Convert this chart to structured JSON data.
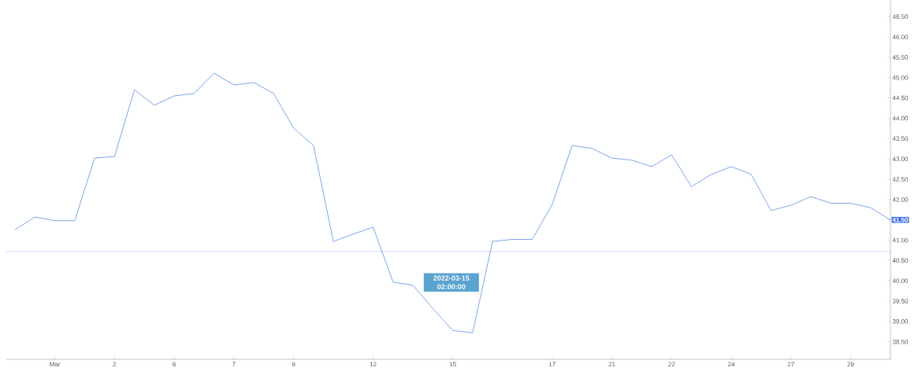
{
  "chart_data": {
    "type": "line",
    "categories": [
      null,
      null,
      "Mar",
      null,
      null,
      "2",
      null,
      null,
      "6",
      null,
      null,
      "7",
      null,
      null,
      "9",
      null,
      null,
      null,
      "12",
      null,
      null,
      null,
      "15",
      null,
      null,
      null,
      null,
      "17",
      null,
      null,
      "21",
      null,
      null,
      "22",
      null,
      null,
      "24",
      null,
      null,
      "27",
      null,
      null,
      "29",
      null,
      null
    ],
    "series": [
      {
        "color": "#5b8fe3",
        "values": [
          41.26,
          41.57,
          41.48,
          41.48,
          43.02,
          43.06,
          44.7,
          44.32,
          44.55,
          44.61,
          45.11,
          44.82,
          44.88,
          44.61,
          43.76,
          43.33,
          40.97,
          41.15,
          41.32,
          39.97,
          39.89,
          39.32,
          38.78,
          38.72,
          40.97,
          41.02,
          41.02,
          41.88,
          43.33,
          43.26,
          43.02,
          42.97,
          42.81,
          43.1,
          42.32,
          42.62,
          42.81,
          42.62,
          41.73,
          41.86,
          42.07,
          41.91,
          41.91,
          41.8,
          41.5
        ]
      }
    ],
    "ylim": [
      38.07,
      46.91
    ],
    "yticks": [
      {
        "value": 38.5,
        "label": "38.50"
      },
      {
        "value": 39,
        "label": "39.00"
      },
      {
        "value": 39.5,
        "label": "39.50"
      },
      {
        "value": 40,
        "label": "40.00"
      },
      {
        "value": 40.5,
        "label": "40.50"
      },
      {
        "value": 41,
        "label": "41.00"
      },
      {
        "value": 41.5,
        "label": "41.50"
      },
      {
        "value": 42,
        "label": "42.00"
      },
      {
        "value": 42.5,
        "label": "42.50"
      },
      {
        "value": 43,
        "label": "43.00"
      },
      {
        "value": 43.5,
        "label": "43.50"
      },
      {
        "value": 44,
        "label": "44.00"
      },
      {
        "value": 44.5,
        "label": "44.50"
      },
      {
        "value": 45,
        "label": "45.00"
      },
      {
        "value": 45.5,
        "label": "45.50"
      },
      {
        "value": 46,
        "label": "46.00"
      },
      {
        "value": 46.5,
        "label": "46.50"
      }
    ],
    "ref_lines": [
      {
        "axis": "y",
        "value": 40.72,
        "color": "#3366ff",
        "line_style": "dotted"
      }
    ],
    "annotations": [
      "2022-03-15 02:00:00"
    ],
    "grid": false,
    "marker": "none",
    "line_style": "solid"
  }
}
